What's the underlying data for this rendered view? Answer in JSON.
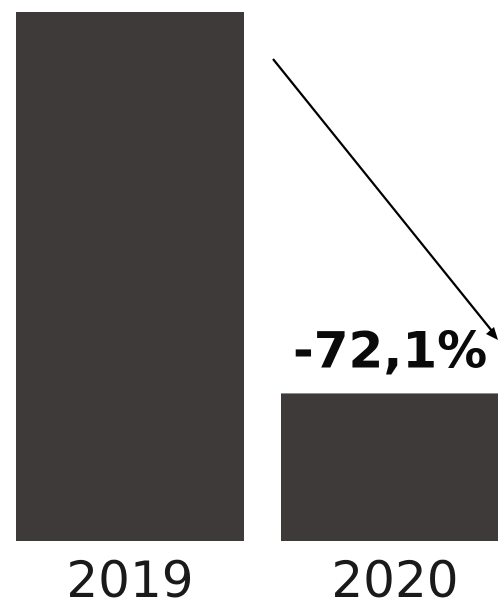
{
  "chart_data": {
    "type": "bar",
    "categories": [
      "2019",
      "2020"
    ],
    "values": [
      100,
      27.9
    ],
    "ylim": [
      0,
      100
    ],
    "annotations": [
      {
        "text": "-72,1%",
        "from": "2019",
        "to": "2020"
      }
    ],
    "colors": {
      "bar": "#3d3a39",
      "arrow": "#000000"
    }
  }
}
